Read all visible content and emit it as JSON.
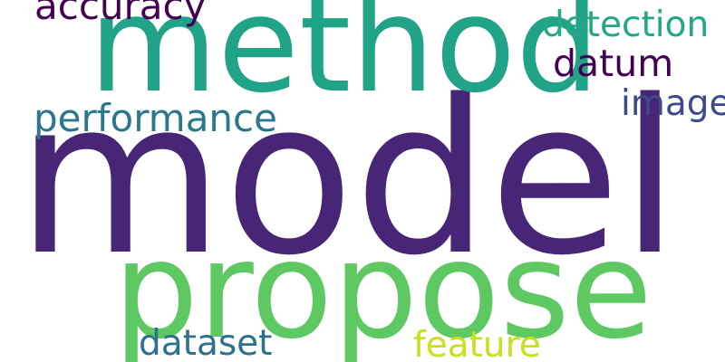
{
  "words": [
    {
      "id": "model",
      "text": "model",
      "color": "#482677"
    },
    {
      "id": "method",
      "text": "method",
      "color": "#20a386"
    },
    {
      "id": "propose",
      "text": "propose",
      "color": "#5ec962"
    },
    {
      "id": "performance",
      "text": "performance",
      "color": "#2a788e"
    },
    {
      "id": "accuracy",
      "text": "accuracy",
      "color": "#440154"
    },
    {
      "id": "detection",
      "text": "detection",
      "color": "#22a884"
    },
    {
      "id": "datum",
      "text": "datum",
      "color": "#440154"
    },
    {
      "id": "image",
      "text": "image",
      "color": "#3e4a89"
    },
    {
      "id": "dataset",
      "text": "dataset",
      "color": "#2c728e"
    },
    {
      "id": "feature",
      "text": "feature",
      "color": "#c8e020"
    }
  ]
}
